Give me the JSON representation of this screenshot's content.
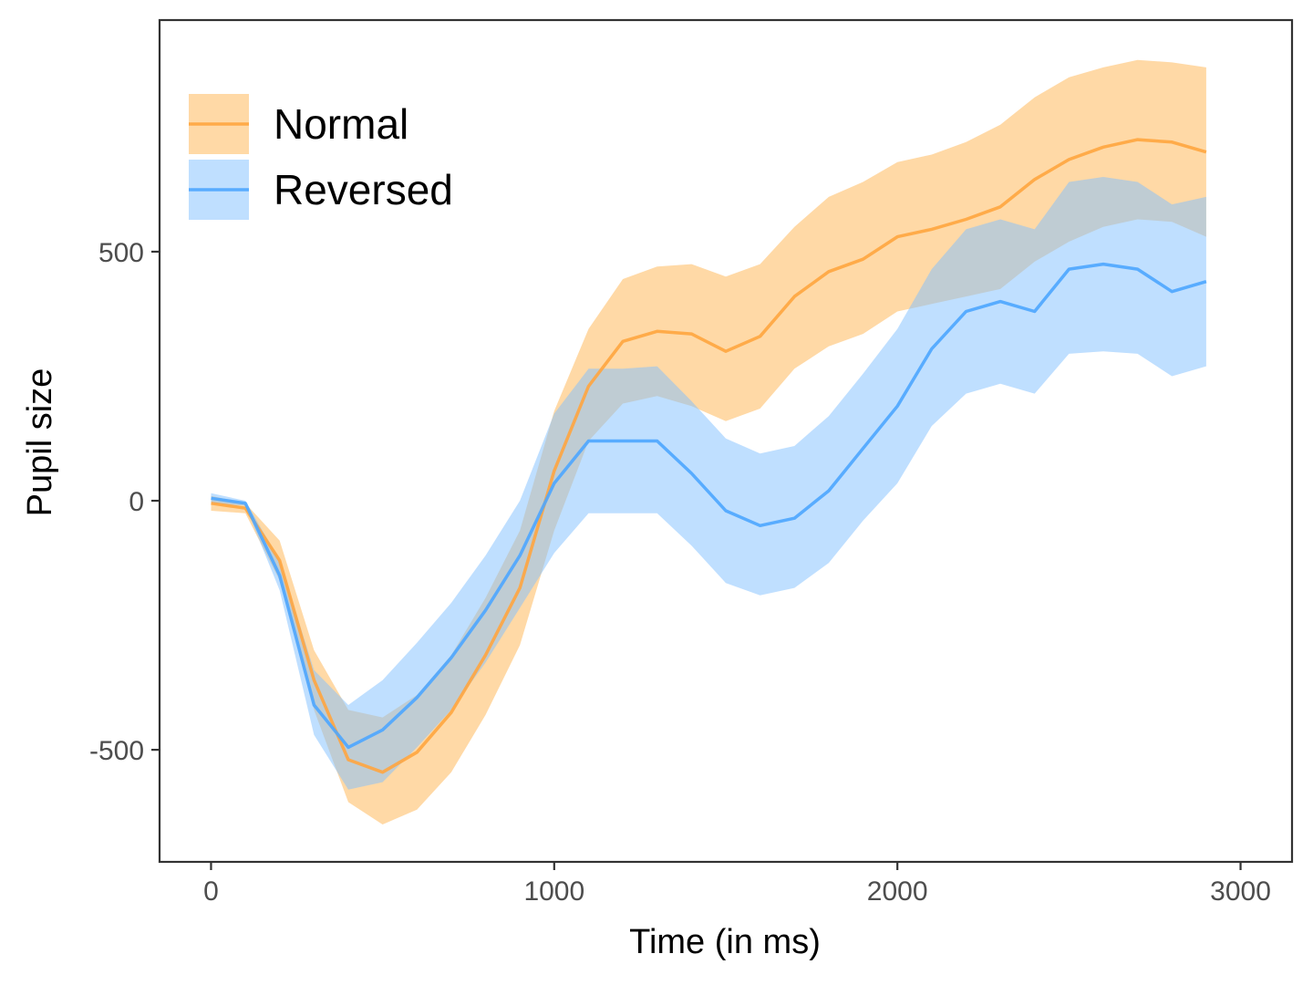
{
  "chart_data": {
    "type": "line",
    "xlabel": "Time (in ms)",
    "ylabel": "Pupil size",
    "xlim": [
      -150,
      3150
    ],
    "ylim": [
      -725,
      965
    ],
    "x_ticks": [
      0,
      1000,
      2000,
      3000
    ],
    "x_tick_labels": [
      "0",
      "1000",
      "2000",
      "3000"
    ],
    "y_ticks": [
      -500,
      0,
      500
    ],
    "y_tick_labels": [
      "-500",
      "0",
      "500"
    ],
    "grid": false,
    "legend_position": "top-left",
    "x": [
      0,
      100,
      200,
      300,
      400,
      500,
      600,
      700,
      800,
      900,
      1000,
      1100,
      1200,
      1300,
      1400,
      1500,
      1600,
      1700,
      1800,
      1900,
      2000,
      2100,
      2200,
      2300,
      2400,
      2500,
      2600,
      2700,
      2800,
      2900
    ],
    "series": [
      {
        "name": "Normal",
        "color": "#FFA53F",
        "band_color": "#FFB34D",
        "values": [
          -5,
          -15,
          -120,
          -360,
          -520,
          -545,
          -505,
          -425,
          -310,
          -175,
          60,
          230,
          320,
          340,
          335,
          300,
          330,
          410,
          460,
          485,
          530,
          545,
          565,
          590,
          645,
          685,
          710,
          725,
          720,
          700
        ],
        "lower": [
          -20,
          -25,
          -160,
          -420,
          -605,
          -650,
          -620,
          -545,
          -430,
          -290,
          -60,
          120,
          195,
          210,
          190,
          160,
          185,
          265,
          310,
          335,
          380,
          395,
          410,
          425,
          480,
          520,
          550,
          565,
          560,
          530
        ],
        "upper": [
          10,
          -5,
          -80,
          -300,
          -420,
          -435,
          -390,
          -310,
          -195,
          -60,
          180,
          345,
          445,
          470,
          475,
          450,
          475,
          550,
          610,
          640,
          680,
          695,
          720,
          755,
          810,
          850,
          870,
          885,
          880,
          870
        ]
      },
      {
        "name": "Reversed",
        "color": "#4CA6FF",
        "band_color": "#80BFFF",
        "values": [
          5,
          -5,
          -150,
          -410,
          -495,
          -460,
          -395,
          -315,
          -220,
          -110,
          35,
          120,
          120,
          120,
          55,
          -20,
          -50,
          -35,
          20,
          105,
          190,
          305,
          380,
          400,
          380,
          465,
          475,
          465,
          420,
          440
        ],
        "lower": [
          -5,
          -10,
          -180,
          -470,
          -580,
          -565,
          -495,
          -420,
          -325,
          -215,
          -105,
          -25,
          -25,
          -25,
          -90,
          -165,
          -190,
          -175,
          -125,
          -40,
          35,
          150,
          215,
          235,
          215,
          295,
          300,
          295,
          250,
          270
        ],
        "upper": [
          15,
          0,
          -120,
          -340,
          -410,
          -360,
          -285,
          -205,
          -110,
          0,
          175,
          265,
          265,
          270,
          200,
          125,
          95,
          110,
          170,
          255,
          345,
          465,
          545,
          565,
          545,
          640,
          650,
          640,
          595,
          610
        ]
      }
    ]
  }
}
